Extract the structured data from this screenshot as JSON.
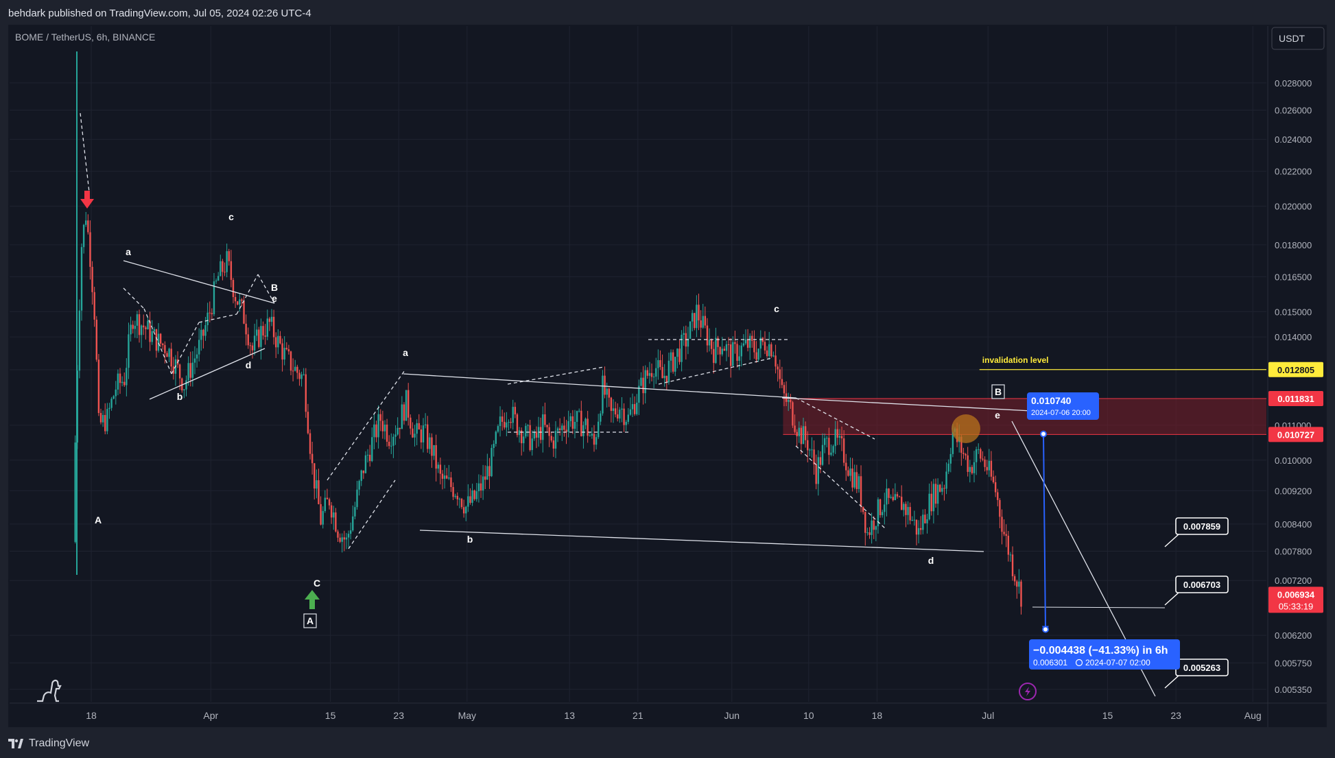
{
  "header": {
    "publish_line": "behdark published on TradingView.com, Jul 05, 2024 02:26 UTC-4"
  },
  "chart_title": "BOME / TetherUS, 6h, BINANCE",
  "currency_button": "USDT",
  "footer": {
    "brand": "TradingView"
  },
  "colors": {
    "up": "#26a69a",
    "down": "#ef5350",
    "bg": "#131722",
    "accent_blue": "#2962ff",
    "invalidation": "#ffeb3b",
    "zone": "#7b1f2a"
  },
  "chart_data": {
    "type": "candlestick",
    "symbol": "BOME / TetherUS",
    "interval": "6h",
    "exchange": "BINANCE",
    "y_scale": "log",
    "ylim": [
      0.00522,
      0.0315
    ],
    "y_ticks": [
      "0.028000",
      "0.026000",
      "0.024000",
      "0.022000",
      "0.020000",
      "0.018000",
      "0.016500",
      "0.015000",
      "0.014000",
      "0.012800",
      "0.011000",
      "0.010000",
      "0.009200",
      "0.008400",
      "0.007800",
      "0.007200",
      "0.006200",
      "0.005750",
      "0.005350"
    ],
    "x_ticks": [
      {
        "label": "18",
        "date": "2024-03-18"
      },
      {
        "label": "Apr",
        "date": "2024-04-01"
      },
      {
        "label": "15",
        "date": "2024-04-15"
      },
      {
        "label": "23",
        "date": "2024-04-23"
      },
      {
        "label": "May",
        "date": "2024-05-01"
      },
      {
        "label": "13",
        "date": "2024-05-13"
      },
      {
        "label": "21",
        "date": "2024-05-21"
      },
      {
        "label": "Jun",
        "date": "2024-06-01"
      },
      {
        "label": "10",
        "date": "2024-06-10"
      },
      {
        "label": "18",
        "date": "2024-06-18"
      },
      {
        "label": "Jul",
        "date": "2024-07-01"
      },
      {
        "label": "15",
        "date": "2024-07-15"
      },
      {
        "label": "23",
        "date": "2024-07-23"
      },
      {
        "label": "Aug",
        "date": "2024-08-01"
      }
    ],
    "price_path": [
      [
        "2024-03-16",
        0.008
      ],
      [
        "2024-03-17",
        0.018
      ],
      [
        "2024-03-17T12",
        0.0196
      ],
      [
        "2024-03-18",
        0.0175
      ],
      [
        "2024-03-18T12",
        0.015
      ],
      [
        "2024-03-19",
        0.011
      ],
      [
        "2024-03-20",
        0.0112
      ],
      [
        "2024-03-21",
        0.0122
      ],
      [
        "2024-03-22",
        0.0125
      ],
      [
        "2024-03-23",
        0.0148
      ],
      [
        "2024-03-24",
        0.0145
      ],
      [
        "2024-03-26",
        0.0138
      ],
      [
        "2024-03-27",
        0.0136
      ],
      [
        "2024-03-29",
        0.0123
      ],
      [
        "2024-03-31",
        0.0138
      ],
      [
        "2024-04-01",
        0.015
      ],
      [
        "2024-04-02",
        0.0165
      ],
      [
        "2024-04-03",
        0.0172
      ],
      [
        "2024-04-04",
        0.0157
      ],
      [
        "2024-04-05",
        0.0148
      ],
      [
        "2024-04-06",
        0.0135
      ],
      [
        "2024-04-07",
        0.0142
      ],
      [
        "2024-04-08",
        0.0145
      ],
      [
        "2024-04-09",
        0.0138
      ],
      [
        "2024-04-10",
        0.0132
      ],
      [
        "2024-04-11",
        0.0128
      ],
      [
        "2024-04-12",
        0.0125
      ],
      [
        "2024-04-13",
        0.0098
      ],
      [
        "2024-04-14",
        0.0085
      ],
      [
        "2024-04-15",
        0.009
      ],
      [
        "2024-04-16",
        0.0083
      ],
      [
        "2024-04-17",
        0.008
      ],
      [
        "2024-04-18",
        0.0088
      ],
      [
        "2024-04-19",
        0.0098
      ],
      [
        "2024-04-20",
        0.0105
      ],
      [
        "2024-04-21",
        0.0112
      ],
      [
        "2024-04-22",
        0.0107
      ],
      [
        "2024-04-23",
        0.011
      ],
      [
        "2024-04-24",
        0.0117
      ],
      [
        "2024-04-25",
        0.0107
      ],
      [
        "2024-04-26",
        0.0108
      ],
      [
        "2024-04-27",
        0.0103
      ],
      [
        "2024-04-28",
        0.0095
      ],
      [
        "2024-04-30",
        0.0092
      ],
      [
        "2024-05-01",
        0.0088
      ],
      [
        "2024-05-02",
        0.009
      ],
      [
        "2024-05-03",
        0.0094
      ],
      [
        "2024-05-04",
        0.01
      ],
      [
        "2024-05-05",
        0.011
      ],
      [
        "2024-05-06",
        0.0115
      ],
      [
        "2024-05-07",
        0.011
      ],
      [
        "2024-05-08",
        0.0107
      ],
      [
        "2024-05-09",
        0.0105
      ],
      [
        "2024-05-10",
        0.011
      ],
      [
        "2024-05-11",
        0.0105
      ],
      [
        "2024-05-13",
        0.0112
      ],
      [
        "2024-05-15",
        0.011
      ],
      [
        "2024-05-16",
        0.0104
      ],
      [
        "2024-05-17",
        0.0122
      ],
      [
        "2024-05-18",
        0.0113
      ],
      [
        "2024-05-19",
        0.0116
      ],
      [
        "2024-05-20",
        0.0112
      ],
      [
        "2024-05-21",
        0.0119
      ],
      [
        "2024-05-22",
        0.0125
      ],
      [
        "2024-05-23",
        0.013
      ],
      [
        "2024-05-24",
        0.0125
      ],
      [
        "2024-05-25",
        0.013
      ],
      [
        "2024-05-26",
        0.0135
      ],
      [
        "2024-05-27",
        0.014
      ],
      [
        "2024-05-28",
        0.015
      ],
      [
        "2024-05-29",
        0.0142
      ],
      [
        "2024-05-30",
        0.0135
      ],
      [
        "2024-05-31",
        0.0138
      ],
      [
        "2024-06-01",
        0.0133
      ],
      [
        "2024-06-02",
        0.0135
      ],
      [
        "2024-06-03",
        0.0137
      ],
      [
        "2024-06-04",
        0.0135
      ],
      [
        "2024-06-05",
        0.0138
      ],
      [
        "2024-06-06",
        0.0136
      ],
      [
        "2024-06-07",
        0.012
      ],
      [
        "2024-06-08",
        0.0115
      ],
      [
        "2024-06-09",
        0.0108
      ],
      [
        "2024-06-10",
        0.0105
      ],
      [
        "2024-06-11",
        0.0097
      ],
      [
        "2024-06-12",
        0.0104
      ],
      [
        "2024-06-13",
        0.0106
      ],
      [
        "2024-06-14",
        0.0103
      ],
      [
        "2024-06-15",
        0.0097
      ],
      [
        "2024-06-16",
        0.0093
      ],
      [
        "2024-06-17",
        0.0082
      ],
      [
        "2024-06-18",
        0.0086
      ],
      [
        "2024-06-19",
        0.009
      ],
      [
        "2024-06-20",
        0.0088
      ],
      [
        "2024-06-21",
        0.0089
      ],
      [
        "2024-06-22",
        0.0086
      ],
      [
        "2024-06-23",
        0.0082
      ],
      [
        "2024-06-24",
        0.0088
      ],
      [
        "2024-06-25",
        0.0092
      ],
      [
        "2024-06-26",
        0.0094
      ],
      [
        "2024-06-27",
        0.0108
      ],
      [
        "2024-06-28",
        0.0103
      ],
      [
        "2024-06-29",
        0.0098
      ],
      [
        "2024-06-30",
        0.0102
      ],
      [
        "2024-07-01",
        0.0098
      ],
      [
        "2024-07-02",
        0.0092
      ],
      [
        "2024-07-03",
        0.0082
      ],
      [
        "2024-07-04",
        0.0075
      ],
      [
        "2024-07-05",
        0.006934
      ]
    ],
    "price_levels": [
      {
        "label": "invalidation level",
        "value": 0.012805,
        "color": "#ffeb3b"
      },
      {
        "value": 0.011831,
        "color": "#f23645"
      },
      {
        "value": 0.010727,
        "color": "#f23645"
      },
      {
        "value": 0.006934,
        "color": "#f23645",
        "countdown": "05:33:19"
      }
    ],
    "target_boxes": [
      "0.007859",
      "0.006703",
      "0.005263"
    ],
    "measure": {
      "from_price": "0.010740",
      "from_time": "2024-07-06 20:00",
      "change_text": "−0.004438 (−41.33%) in 6h",
      "to_price": "0.006301",
      "to_time": "2024-07-07  02:00"
    },
    "wave_labels": [
      "A",
      "a",
      "b",
      "c",
      "d",
      "e",
      "B",
      "C",
      "A",
      "a",
      "b",
      "c",
      "d",
      "e",
      "B"
    ]
  }
}
